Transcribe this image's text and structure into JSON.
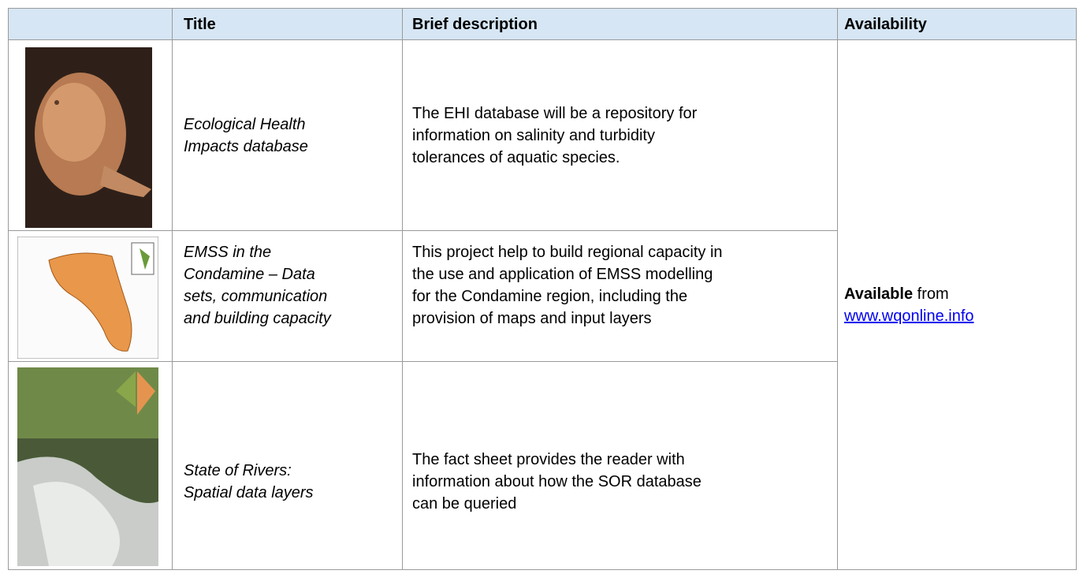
{
  "table": {
    "header": [
      "Title",
      "Brief description",
      "Availability"
    ],
    "rows": [
      {
        "title": [
          "Ecological Health",
          "Impacts database"
        ],
        "description": [
          "The EHI database will be a repository for",
          "information on salinity and turbidity",
          "tolerances of aquatic species."
        ]
      },
      {
        "title": [
          "EMSS in the",
          "Condamine – Data",
          "sets, communication",
          "and building capacity"
        ],
        "description": [
          "This project help to build regional capacity in",
          "the use and application of EMSS modelling",
          "for the Condamine region, including the",
          "provision of maps and input layers"
        ]
      },
      {
        "title": [
          "State of Rivers:",
          "Spatial data layers"
        ],
        "description": [
          "The fact sheet provides the reader with",
          "information about how the SOR database",
          "can be queried"
        ]
      }
    ],
    "availability": {
      "label": "Available",
      "text": "from",
      "link": "www.wqonline.info"
    }
  }
}
